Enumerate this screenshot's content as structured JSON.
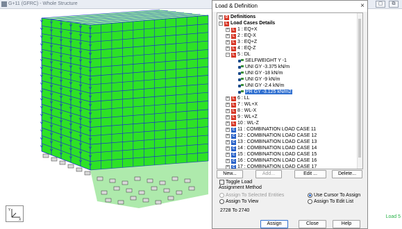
{
  "viewport": {
    "title": "G+11 (GFRC) - Whole Structure",
    "status_right": "Load 5",
    "window_btns": [
      "▢",
      "⧉"
    ]
  },
  "dialog": {
    "title": "Load & Definition",
    "close": "×",
    "tree": {
      "definitions": "Definitions",
      "load_cases": "Load Cases Details",
      "cases": [
        {
          "label": "1 : EQ+X",
          "type": "L"
        },
        {
          "label": "2 : EQ-X",
          "type": "L"
        },
        {
          "label": "3 : EQ+Z",
          "type": "L"
        },
        {
          "label": "4 : EQ-Z",
          "type": "L"
        },
        {
          "label": "5 : DL",
          "type": "L"
        }
      ],
      "dl_items": [
        "SELFWEIGHT Y -1",
        "UNI GY -3.375 kN/m",
        "UNI GY -18 kN/m",
        "UNI GY -9 kN/m",
        "UNI GY -2.4 kN/m",
        "PR GY -3.125 kN/m2"
      ],
      "cases_after": [
        {
          "label": "6 : LL",
          "type": "L"
        },
        {
          "label": "7 : WL+X",
          "type": "L"
        },
        {
          "label": "8 : WL-X",
          "type": "L"
        },
        {
          "label": "9 : WL+Z",
          "type": "L"
        },
        {
          "label": "10 : WL-Z",
          "type": "L"
        },
        {
          "label": "11 : COMBINATION LOAD CASE 11",
          "type": "C"
        },
        {
          "label": "12 : COMBINATION LOAD CASE 12",
          "type": "C"
        },
        {
          "label": "13 : COMBINATION LOAD CASE 13",
          "type": "C"
        },
        {
          "label": "14 : COMBINATION LOAD CASE 14",
          "type": "C"
        },
        {
          "label": "15 : COMBINATION LOAD CASE 15",
          "type": "C"
        },
        {
          "label": "16 : COMBINATION LOAD CASE 16",
          "type": "C"
        },
        {
          "label": "17 : COMBINATION LOAD CASE 17",
          "type": "C"
        }
      ]
    },
    "buttons": {
      "new": "New...",
      "add": "Add...",
      "edit": "Edit ...",
      "delete": "Delete..."
    },
    "toggle_load": "Toggle Load",
    "assignment_method": "Assignment Method",
    "assign_selected": "Assign To Selected Entities",
    "use_cursor": "Use Cursor To Assign",
    "assign_view": "Assign To View",
    "assign_edit_list": "Assign To Edit List",
    "range": "2728 To 2740",
    "assign": "Assign",
    "close_btn": "Close",
    "help": "Help"
  },
  "colors": {
    "structure_blue": "#1a2fd0",
    "load_green": "#22e01a",
    "selection_blue": "#2f6fd0",
    "status_green": "#2bb34a"
  }
}
